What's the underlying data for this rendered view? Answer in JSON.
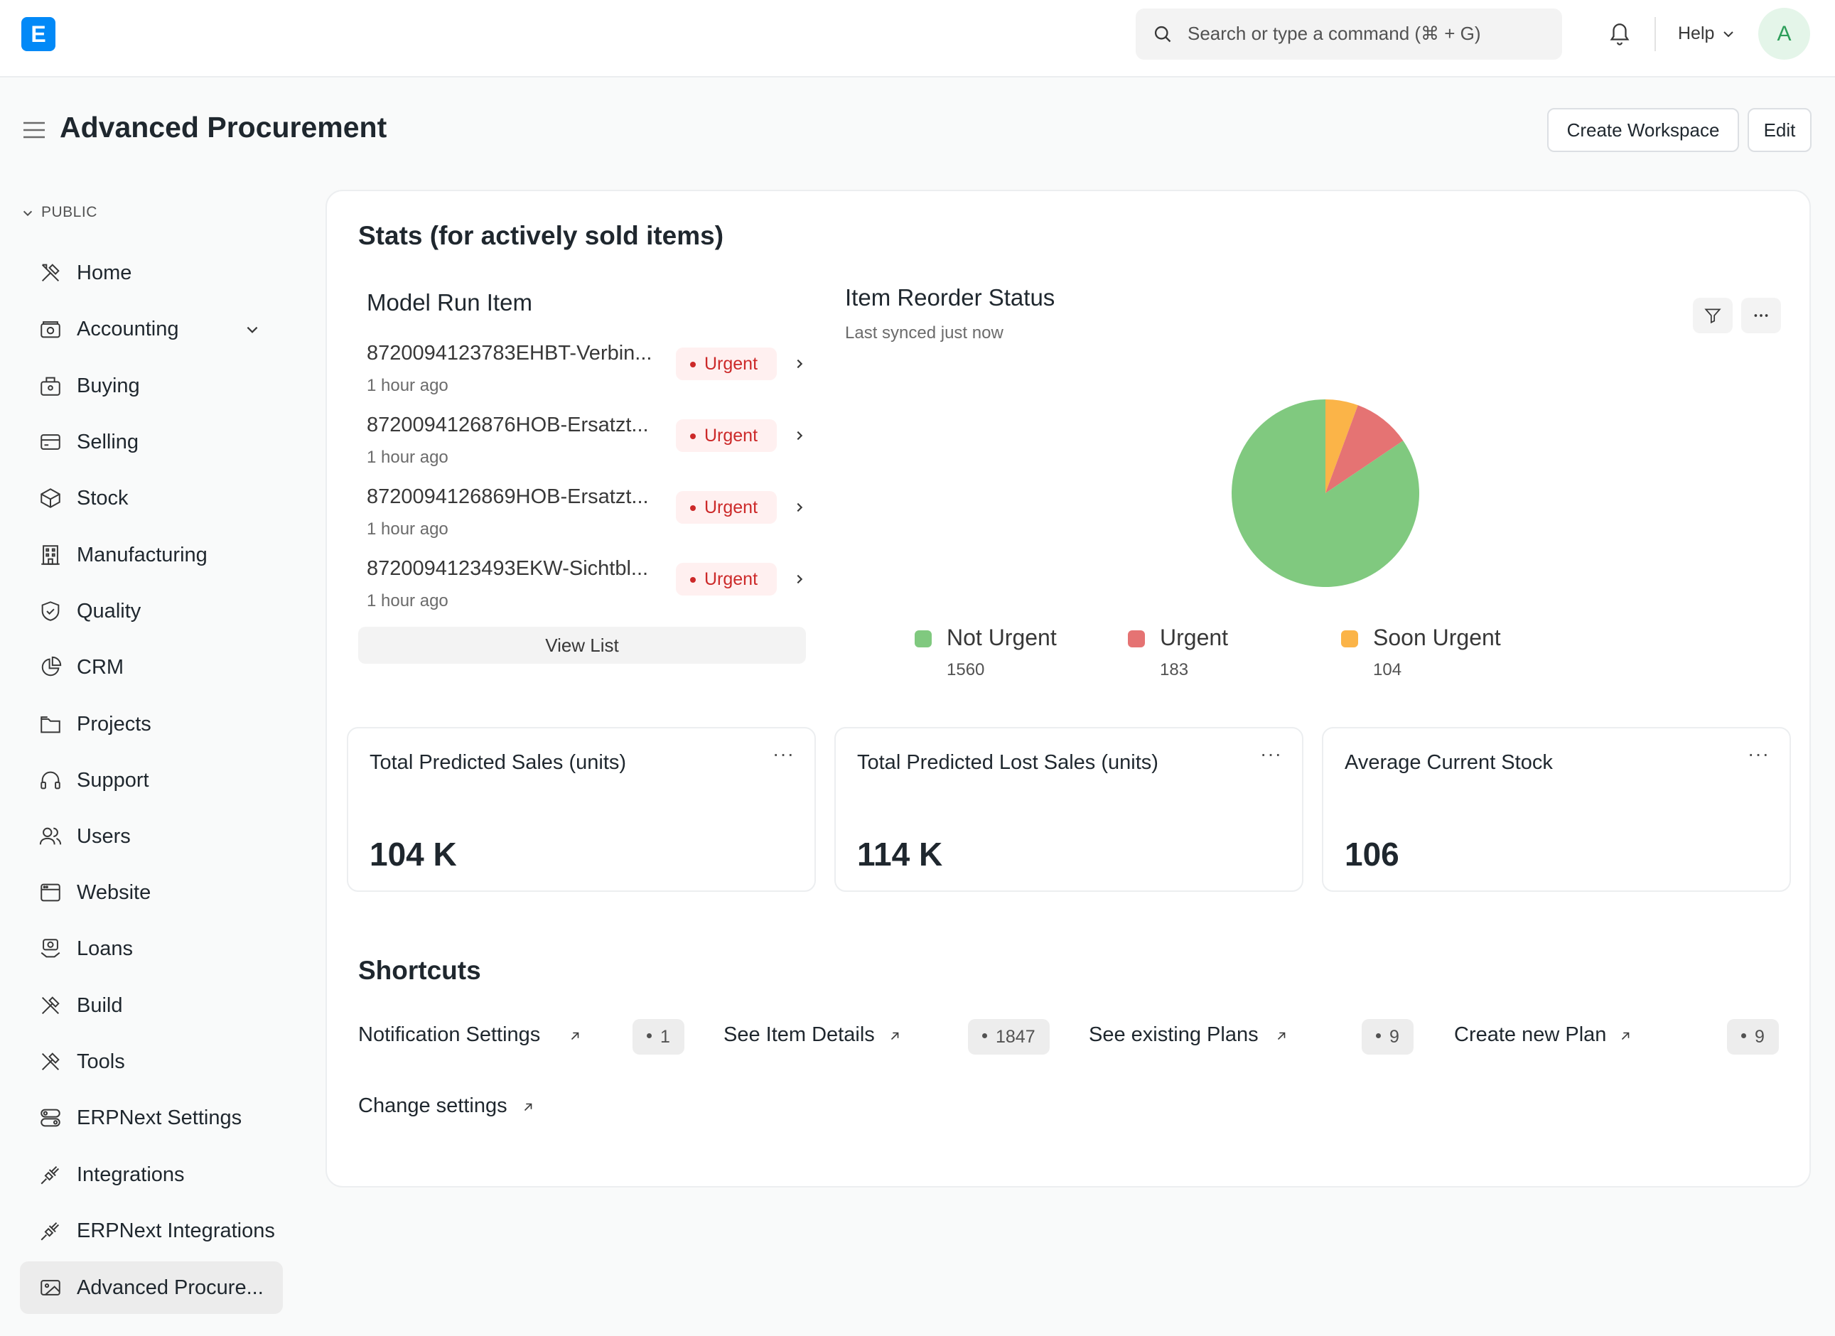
{
  "navbar": {
    "logo_letter": "E",
    "search_placeholder": "Search or type a command (⌘ + G)",
    "help_label": "Help",
    "avatar_initial": "A"
  },
  "header": {
    "title": "Advanced Procurement",
    "create_workspace_label": "Create Workspace",
    "edit_label": "Edit"
  },
  "sidebar": {
    "section_label": "PUBLIC",
    "items": [
      {
        "label": "Home",
        "icon": "tools-icon"
      },
      {
        "label": "Accounting",
        "icon": "accounting-icon"
      },
      {
        "label": "Buying",
        "icon": "buying-icon"
      },
      {
        "label": "Selling",
        "icon": "selling-icon"
      },
      {
        "label": "Stock",
        "icon": "stock-icon"
      },
      {
        "label": "Manufacturing",
        "icon": "manufacturing-icon"
      },
      {
        "label": "Quality",
        "icon": "quality-icon"
      },
      {
        "label": "CRM",
        "icon": "crm-icon"
      },
      {
        "label": "Projects",
        "icon": "projects-icon"
      },
      {
        "label": "Support",
        "icon": "support-icon"
      },
      {
        "label": "Users",
        "icon": "users-icon"
      },
      {
        "label": "Website",
        "icon": "website-icon"
      },
      {
        "label": "Loans",
        "icon": "loans-icon"
      },
      {
        "label": "Build",
        "icon": "build-icon"
      },
      {
        "label": "Tools",
        "icon": "tools-icon"
      },
      {
        "label": "ERPNext Settings",
        "icon": "settings-icon"
      },
      {
        "label": "Integrations",
        "icon": "integrations-icon"
      },
      {
        "label": "ERPNext Integrations",
        "icon": "integrations-icon"
      },
      {
        "label": "Advanced Procure...",
        "icon": "image-icon"
      }
    ]
  },
  "stats": {
    "title": "Stats (for actively sold items)",
    "model_run": {
      "title": "Model Run Item",
      "rows": [
        {
          "name": "8720094123783EHBT-Verbin...",
          "time": "1 hour ago",
          "status": "Urgent"
        },
        {
          "name": "8720094126876HOB-Ersatzt...",
          "time": "1 hour ago",
          "status": "Urgent"
        },
        {
          "name": "8720094126869HOB-Ersatzt...",
          "time": "1 hour ago",
          "status": "Urgent"
        },
        {
          "name": "8720094123493EKW-Sichtbl...",
          "time": "1 hour ago",
          "status": "Urgent"
        }
      ],
      "view_list_label": "View List"
    },
    "reorder": {
      "title": "Item Reorder Status",
      "subtitle": "Last synced just now"
    }
  },
  "chart_data": {
    "type": "pie",
    "title": "Item Reorder Status",
    "categories": [
      "Not Urgent",
      "Urgent",
      "Soon Urgent"
    ],
    "values": [
      1560,
      183,
      104
    ],
    "colors": [
      "#80c97f",
      "#e57373",
      "#fbb448"
    ],
    "legend": "bottom"
  },
  "number_cards": [
    {
      "title": "Total Predicted Sales (units)",
      "value": "104 K"
    },
    {
      "title": "Total Predicted Lost Sales (units)",
      "value": "114 K"
    },
    {
      "title": "Average Current Stock",
      "value": "106"
    }
  ],
  "shortcuts": {
    "title": "Shortcuts",
    "items": [
      {
        "label": "Notification Settings",
        "count": "1"
      },
      {
        "label": "See Item Details",
        "count": "1847"
      },
      {
        "label": "See existing Plans",
        "count": "9"
      },
      {
        "label": "Create new Plan",
        "count": "9"
      },
      {
        "label": "Change settings",
        "count": ""
      }
    ]
  }
}
